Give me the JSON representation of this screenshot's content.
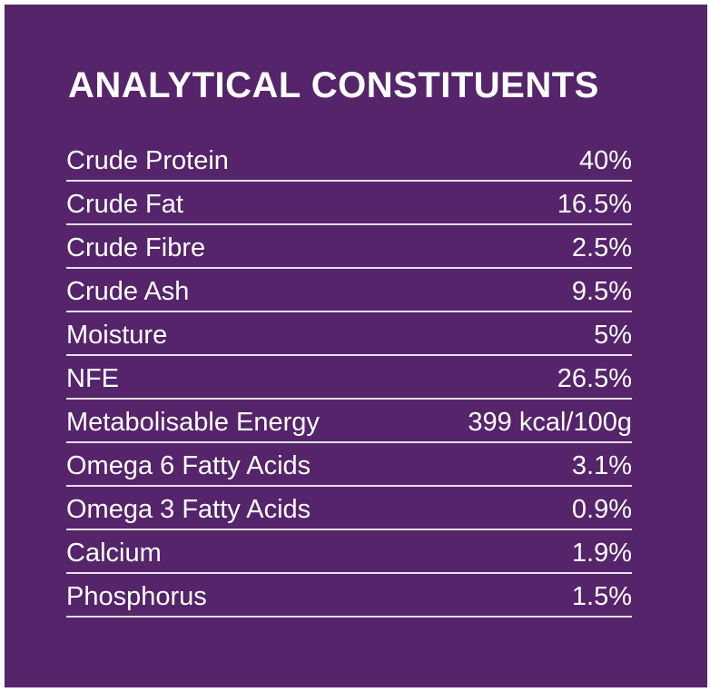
{
  "title": "ANALYTICAL CONSTITUENTS",
  "rows": [
    {
      "label": "Crude Protein",
      "value": "40%"
    },
    {
      "label": "Crude Fat",
      "value": "16.5%"
    },
    {
      "label": "Crude Fibre",
      "value": "2.5%"
    },
    {
      "label": "Crude Ash",
      "value": "9.5%"
    },
    {
      "label": "Moisture",
      "value": "5%"
    },
    {
      "label": "NFE",
      "value": "26.5%"
    },
    {
      "label": "Metabolisable Energy",
      "value": "399 kcal/100g"
    },
    {
      "label": "Omega 6 Fatty Acids",
      "value": "3.1%"
    },
    {
      "label": "Omega 3 Fatty Acids",
      "value": "0.9%"
    },
    {
      "label": "Calcium",
      "value": "1.9%"
    },
    {
      "label": "Phosphorus",
      "value": "1.5%"
    }
  ],
  "colors": {
    "background": "#55246a",
    "text": "#ffffff",
    "divider": "#e7def0"
  }
}
